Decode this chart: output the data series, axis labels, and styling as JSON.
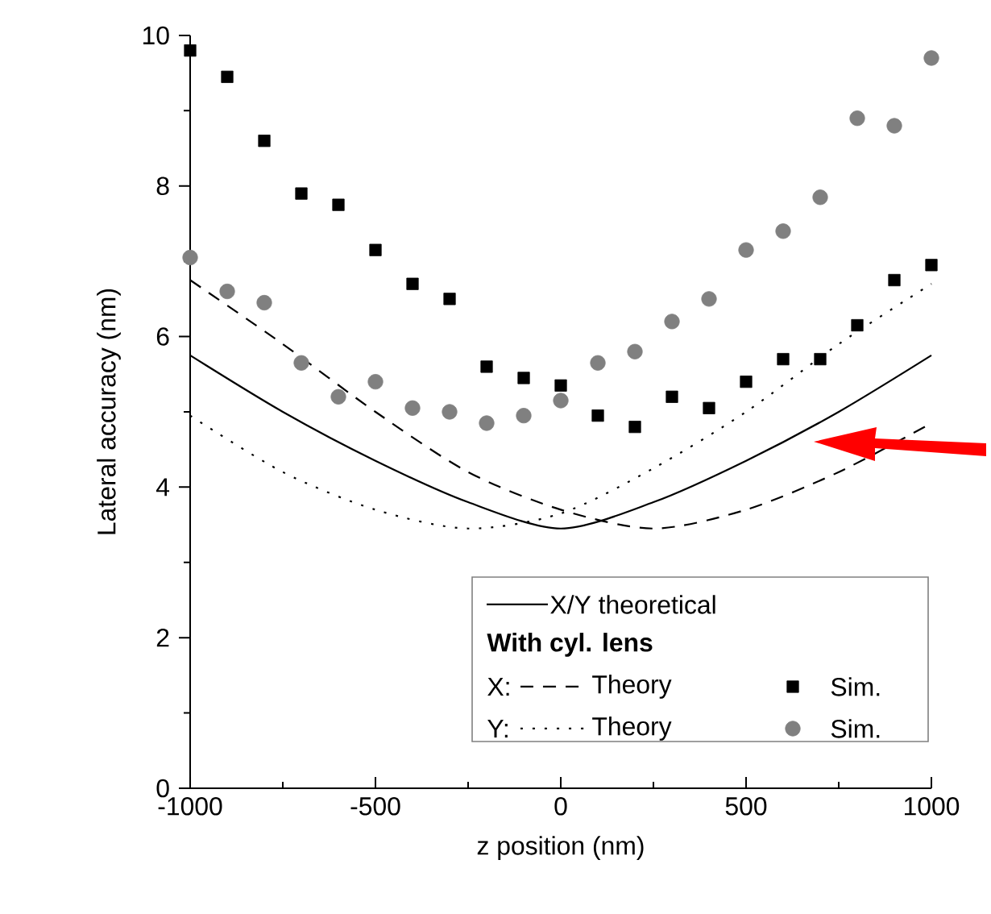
{
  "chart_data": {
    "type": "line",
    "xlabel": "z position (nm)",
    "ylabel": "Lateral accuracy (nm)",
    "x": [
      -1000,
      -750,
      -500,
      -250,
      0,
      250,
      500,
      750,
      1000
    ],
    "xlim": [
      -1000,
      1000
    ],
    "xticks": [
      -1000,
      -500,
      0,
      500,
      1000
    ],
    "ylim": [
      0,
      10
    ],
    "yticks": [
      0,
      2,
      4,
      6,
      8,
      10
    ],
    "grid": false,
    "legend": "bottom right",
    "legend_title": "With cyl. lens",
    "annotations": [
      "X:",
      "Y:"
    ],
    "series": [
      {
        "name": "X/Y theoretical",
        "line_style": "solid",
        "color": "#000000",
        "values": [
          5.75,
          5.0,
          4.35,
          3.8,
          3.45,
          3.8,
          4.35,
          5.0,
          5.75
        ]
      },
      {
        "name": "Theory",
        "line_style": "dashed",
        "color": "#000000",
        "values": [
          6.75,
          5.9,
          5.0,
          4.2,
          3.7,
          3.45,
          3.7,
          4.2,
          4.85
        ]
      },
      {
        "name": "Sim.",
        "type": "scatter",
        "marker": "square",
        "color": "#000000",
        "x": [
          -1000,
          -900,
          -800,
          -700,
          -600,
          -500,
          -400,
          -300,
          -200,
          -100,
          0,
          100,
          200,
          300,
          400,
          500,
          600,
          700,
          800,
          900,
          1000
        ],
        "values": [
          9.8,
          9.45,
          8.6,
          7.9,
          7.75,
          7.15,
          6.7,
          6.5,
          5.6,
          5.45,
          5.35,
          4.95,
          4.8,
          5.2,
          5.05,
          5.4,
          5.7,
          5.7,
          6.15,
          6.75,
          6.95
        ]
      },
      {
        "name": "Theory",
        "line_style": "dotted",
        "color": "#000000",
        "values": [
          4.95,
          4.2,
          3.7,
          3.45,
          3.65,
          4.25,
          5.0,
          5.9,
          6.7
        ]
      },
      {
        "name": "Sim.",
        "type": "scatter",
        "marker": "circle",
        "color": "#808080",
        "x": [
          -1000,
          -900,
          -800,
          -700,
          -600,
          -500,
          -400,
          -300,
          -200,
          -100,
          0,
          100,
          200,
          300,
          400,
          500,
          600,
          700,
          800,
          900,
          1000
        ],
        "values": [
          7.05,
          6.6,
          6.45,
          5.65,
          5.2,
          5.4,
          5.05,
          5.0,
          4.85,
          4.95,
          5.15,
          5.65,
          5.8,
          6.2,
          6.5,
          7.15,
          7.4,
          7.85,
          8.9,
          8.8,
          9.7
        ]
      }
    ]
  }
}
